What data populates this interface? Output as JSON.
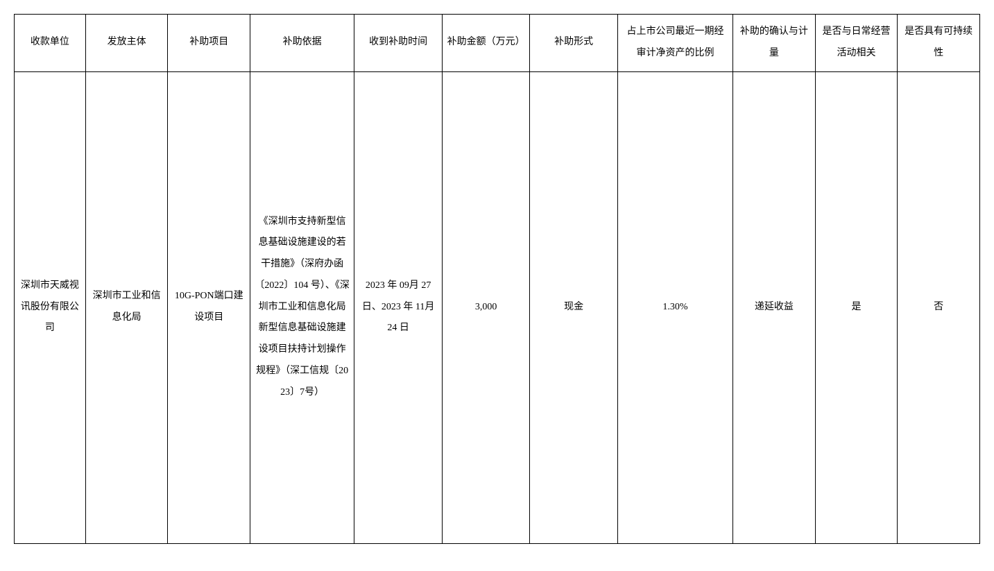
{
  "table": {
    "columns": [
      "收款单位",
      "发放主体",
      "补助项目",
      "补助依据",
      "收到补助时间",
      "补助金额（万元）",
      "补助形式",
      "占上市公司最近一期经审计净资产的比例",
      "补助的确认与计量",
      "是否与日常经营活动相关",
      "是否具有可持续性"
    ],
    "rows": [
      {
        "recipient": "深圳市天威视讯股份有限公司",
        "issuer": "深圳市工业和信息化局",
        "project": "10G-PON端口建设项目",
        "basis": "《深圳市支持新型信息基础设施建设的若干措施》（深府办函〔2022〕104 号）、《深圳市工业和信息化局新型信息基础设施建设项目扶持计划操作规程》（深工信规〔2023〕7号）",
        "receive_date": "2023 年 09月 27 日、2023 年 11月 24 日",
        "amount": "3,000",
        "form": "现金",
        "ratio": "1.30%",
        "recognition": "递延收益",
        "daily_related": "是",
        "sustainable": "否"
      }
    ],
    "column_widths": [
      "6.5%",
      "7.5%",
      "7.5%",
      "9.5%",
      "8%",
      "8%",
      "8%",
      "10.5%",
      "7.5%",
      "7.5%",
      "7.5%"
    ],
    "border_color": "#000000",
    "background_color": "#ffffff",
    "text_color": "#000000",
    "font_size": 14,
    "line_height": 2.2
  }
}
